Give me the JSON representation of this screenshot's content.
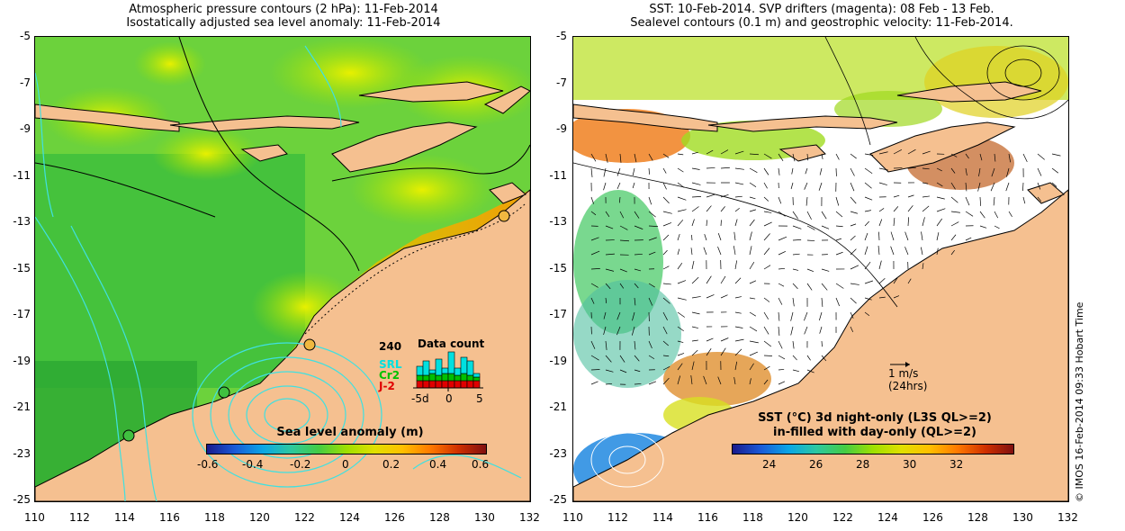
{
  "left": {
    "title_line1": "Atmospheric pressure contours (2 hPa): 11-Feb-2014",
    "title_line2": "Isostatically adjusted sea level anomaly: 11-Feb-2014",
    "colorbar_title": "Sea level anomaly (m)",
    "colorbar_ticks": [
      "-0.6",
      "-0.4",
      "-0.2",
      "0",
      "0.2",
      "0.4",
      "0.6"
    ],
    "inset": {
      "count": "240",
      "title": "Data count",
      "missions": [
        {
          "label": "SRL",
          "color": "#00e0e0"
        },
        {
          "label": "Cr2",
          "color": "#00c000"
        },
        {
          "label": "J-2",
          "color": "#e00000"
        }
      ],
      "x_ticks": [
        "-5d",
        "0",
        "5"
      ]
    }
  },
  "right": {
    "title_line1": "SST: 10-Feb-2014. SVP drifters (magenta): 08 Feb - 13 Feb.",
    "title_line2": "Sealevel contours (0.1 m) and geostrophic velocity: 11-Feb-2014.",
    "colorbar_title_line1": "SST (°C)  3d night-only (L3S QL>=2)",
    "colorbar_title_line2": "in-filled with day-only (QL>=2)",
    "colorbar_ticks": [
      "24",
      "26",
      "28",
      "30",
      "32"
    ],
    "scale_arrow_line1": "1 m/s",
    "scale_arrow_line2": "(24hrs)"
  },
  "axes": {
    "x_ticks": [
      "110",
      "112",
      "114",
      "116",
      "118",
      "120",
      "122",
      "124",
      "126",
      "128",
      "130",
      "132"
    ],
    "y_ticks": [
      "-5",
      "-7",
      "-9",
      "-11",
      "-13",
      "-15",
      "-17",
      "-19",
      "-21",
      "-23",
      "-25"
    ]
  },
  "credit": "© IMOS 16-Feb-2014 09:33 Hobart Time",
  "colors": {
    "land": "#f5c090",
    "ocean_green": "#3cc43c",
    "ocean_yellow": "#d8e800",
    "contour_cyan": "#40e0e0"
  }
}
